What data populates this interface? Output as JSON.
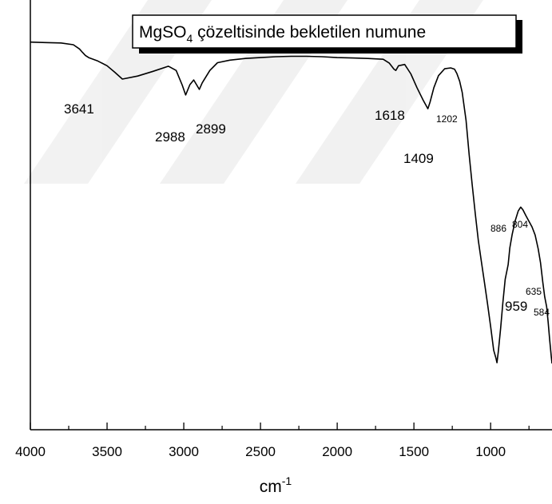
{
  "chart_data": {
    "type": "line",
    "title": "MgSO",
    "title_subscript": "4",
    "title_rest": " çözeltisinde bekletilen numune",
    "xlabel": "cm",
    "xlabel_superscript": "-1",
    "ylabel": "",
    "x_reversed": true,
    "xlim": [
      4000,
      600
    ],
    "ylim": [
      0,
      100
    ],
    "grid": false,
    "xticks": [
      4000,
      3500,
      3000,
      2500,
      2000,
      1500,
      1000
    ],
    "series": [
      {
        "x": [
          4000,
          3900,
          3800,
          3720,
          3680,
          3660,
          3641,
          3620,
          3560,
          3500,
          3450,
          3400,
          3300,
          3200,
          3100,
          3050,
          3010,
          2988,
          2960,
          2935,
          2899,
          2880,
          2830,
          2780,
          2700,
          2600,
          2500,
          2400,
          2300,
          2200,
          2100,
          2000,
          1900,
          1800,
          1700,
          1660,
          1630,
          1618,
          1600,
          1560,
          1520,
          1480,
          1440,
          1420,
          1409,
          1395,
          1370,
          1340,
          1300,
          1260,
          1235,
          1220,
          1202,
          1185,
          1160,
          1140,
          1120,
          1100,
          1080,
          1060,
          1040,
          1020,
          1000,
          980,
          965,
          959,
          950,
          935,
          920,
          905,
          886,
          875,
          860,
          840,
          820,
          804,
          790,
          770,
          750,
          730,
          710,
          690,
          675,
          660,
          648,
          635,
          625,
          615,
          605,
          600
        ],
        "y": [
          90.2,
          90.1,
          90.0,
          89.6,
          88.6,
          87.8,
          87.1,
          86.6,
          85.8,
          84.7,
          83.2,
          81.6,
          82.3,
          83.4,
          84.6,
          83.6,
          80.2,
          77.9,
          80.3,
          81.4,
          79.2,
          80.7,
          83.6,
          85.4,
          86.0,
          86.4,
          86.6,
          86.8,
          86.9,
          86.9,
          86.8,
          86.6,
          86.5,
          86.4,
          86.2,
          85.3,
          83.9,
          83.6,
          84.7,
          85.0,
          82.8,
          79.6,
          76.7,
          75.4,
          74.7,
          76.2,
          79.6,
          82.4,
          84.0,
          84.2,
          83.9,
          82.9,
          81.1,
          78.5,
          72.0,
          64.0,
          57.0,
          50.2,
          44.0,
          39.0,
          34.2,
          29.3,
          24.0,
          18.5,
          16.6,
          15.6,
          18.2,
          23.6,
          29.6,
          35.0,
          38.4,
          42.3,
          45.4,
          48.6,
          50.9,
          51.8,
          51.2,
          49.8,
          48.5,
          47.2,
          45.3,
          42.1,
          38.9,
          34.3,
          31.0,
          28.6,
          25.0,
          20.9,
          17.2,
          15.4
        ]
      }
    ],
    "annotations": [
      {
        "text": "3641"
      },
      {
        "text": "2988"
      },
      {
        "text": "2899"
      },
      {
        "text": "1618"
      },
      {
        "text": "1409"
      },
      {
        "text": "1202"
      },
      {
        "text": "886"
      },
      {
        "text": "804"
      },
      {
        "text": "959"
      },
      {
        "text": "635"
      },
      {
        "text": "584"
      }
    ],
    "colors": {
      "line": "#000000",
      "axis": "#000000",
      "title_border": "#000000",
      "title_shadow": "#000000",
      "background": "#ffffff"
    }
  }
}
